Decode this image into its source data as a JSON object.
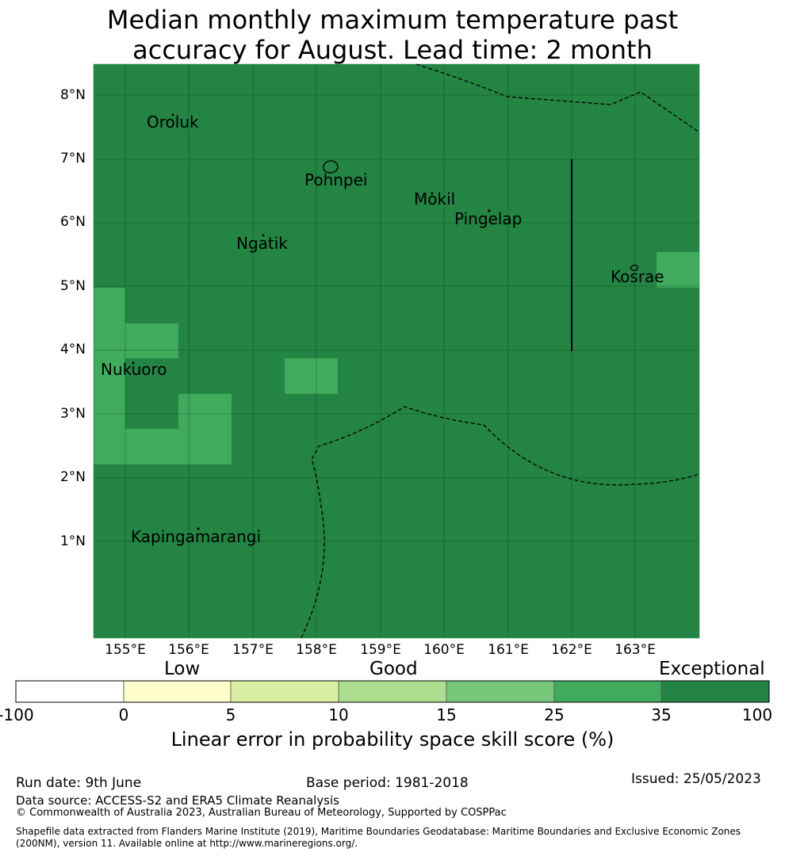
{
  "title": {
    "line1": "Median monthly maximum temperature past",
    "line2": "accuracy for August. Lead time: 2 month"
  },
  "map": {
    "lat_ticks": [
      "1°N",
      "2°N",
      "3°N",
      "4°N",
      "5°N",
      "6°N",
      "7°N",
      "8°N"
    ],
    "lon_ticks": [
      "155°E",
      "156°E",
      "157°E",
      "158°E",
      "159°E",
      "160°E",
      "161°E",
      "162°E",
      "163°E"
    ],
    "places": {
      "oroluk": "Oroluk",
      "pohnpei": "Pohnpei",
      "mokil": "Mokil",
      "pingelap": "Pingelap",
      "ngatik": "Ngatik",
      "kosrae": "Kosrae",
      "nukuoro": "Nukuoro",
      "kapingamarangi": "Kapingamarangi"
    },
    "colors": {
      "exceptional": "#238443",
      "good_high": "#41ab5d"
    }
  },
  "colorbar": {
    "categories": {
      "low": "Low",
      "good": "Good",
      "exceptional": "Exceptional"
    },
    "ticks": [
      "-100",
      "0",
      "5",
      "10",
      "15",
      "25",
      "35",
      "100"
    ],
    "colors": [
      "#ffffff",
      "#ffffcc",
      "#d9f0a3",
      "#addd8e",
      "#78c679",
      "#41ab5d",
      "#238443"
    ],
    "title": "Linear error in probability space skill score (%)"
  },
  "footer": {
    "run_date": "Run date: 9th June",
    "base_period": "Base period: 1981-2018",
    "issued": "Issued: 25/05/2023",
    "data_source": "Data source: ACCESS-S2 and ERA5 Climate Reanalysis",
    "copyright": "© Commonwealth of Australia 2023, Australian Bureau of Meteorology, Supported by COSPPac",
    "shapefile_line1": "Shapefile data extracted from Flanders Marine Institute (2019), Maritime Boundaries Geodatabase: Maritime Boundaries and Exclusive Economic Zones",
    "shapefile_line2": "(200NM), version 11. Available online at http://www.marineregions.org/."
  }
}
